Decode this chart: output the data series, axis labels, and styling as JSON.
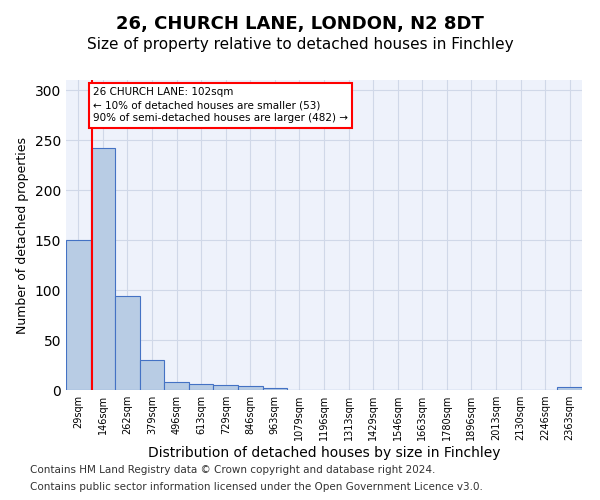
{
  "title1": "26, CHURCH LANE, LONDON, N2 8DT",
  "title2": "Size of property relative to detached houses in Finchley",
  "xlabel": "Distribution of detached houses by size in Finchley",
  "ylabel": "Number of detached properties",
  "footer1": "Contains HM Land Registry data © Crown copyright and database right 2024.",
  "footer2": "Contains public sector information licensed under the Open Government Licence v3.0.",
  "bin_labels": [
    "29sqm",
    "146sqm",
    "262sqm",
    "379sqm",
    "496sqm",
    "613sqm",
    "729sqm",
    "846sqm",
    "963sqm",
    "1079sqm",
    "1196sqm",
    "1313sqm",
    "1429sqm",
    "1546sqm",
    "1663sqm",
    "1780sqm",
    "1896sqm",
    "2013sqm",
    "2130sqm",
    "2246sqm",
    "2363sqm"
  ],
  "bar_heights": [
    150,
    242,
    94,
    30,
    8,
    6,
    5,
    4,
    2,
    0,
    0,
    0,
    0,
    0,
    0,
    0,
    0,
    0,
    0,
    0,
    3
  ],
  "bar_color": "#b8cce4",
  "bar_edge_color": "#4472c4",
  "grid_color": "#d0d8e8",
  "annotation_text": "26 CHURCH LANE: 102sqm\n← 10% of detached houses are smaller (53)\n90% of semi-detached houses are larger (482) →",
  "annotation_box_color": "#ff0000",
  "vline_color": "#ff0000",
  "vline_x": 0.55,
  "ylim": [
    0,
    310
  ],
  "yticks": [
    0,
    50,
    100,
    150,
    200,
    250,
    300
  ],
  "background_color": "#eef2fb",
  "title1_fontsize": 13,
  "title2_fontsize": 11,
  "xlabel_fontsize": 10,
  "ylabel_fontsize": 9,
  "footer_fontsize": 7.5
}
